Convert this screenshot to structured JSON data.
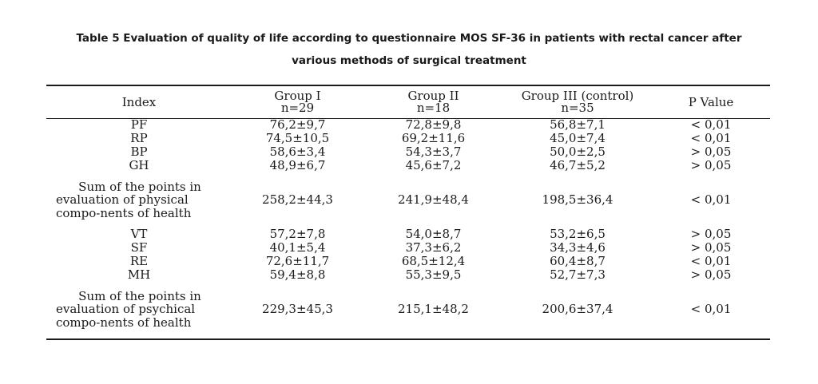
{
  "caption": {
    "line1": "Table 5 Evaluation of quality of life according to questionnaire MOS SF-36 in patients with rectal cancer after",
    "line2": "various methods of surgical treatment"
  },
  "table": {
    "headers": [
      {
        "label": "Index",
        "sub": ""
      },
      {
        "label": "Group I",
        "sub": "n=29"
      },
      {
        "label": "Group II",
        "sub": "n=18"
      },
      {
        "label": "Group III (control)",
        "sub": "n=35"
      },
      {
        "label": "P Value",
        "sub": ""
      }
    ],
    "rows": [
      {
        "index": "PF",
        "g1": "76,2±9,7",
        "g2": "72,8±9,8",
        "g3": "56,8±7,1",
        "p": "< 0,01"
      },
      {
        "index": "RP",
        "g1": "74,5±10,5",
        "g2": "69,2±11,6",
        "g3": "45,0±7,4",
        "p": "< 0,01"
      },
      {
        "index": "BP",
        "g1": "58,6±3,4",
        "g2": "54,3±3,7",
        "g3": "50,0±2,5",
        "p": "> 0,05"
      },
      {
        "index": "GH",
        "g1": "48,9±6,7",
        "g2": "45,6±7,2",
        "g3": "46,7±5,2",
        "p": "> 0,05"
      },
      {
        "index": "Sum of the points in evaluation of physical",
        "index_last": "compo-nents of health",
        "g1": "258,2±44,3",
        "g2": "241,9±48,4",
        "g3": "198,5±36,4",
        "p": "< 0,01"
      },
      {
        "index": "VT",
        "g1": "57,2±7,8",
        "g2": "54,0±8,7",
        "g3": "53,2±6,5",
        "p": "> 0,05"
      },
      {
        "index": "SF",
        "g1": "40,1±5,4",
        "g2": "37,3±6,2",
        "g3": "34,3±4,6",
        "p": "> 0,05"
      },
      {
        "index": "RE",
        "g1": "72,6±11,7",
        "g2": "68,5±12,4",
        "g3": "60,4±8,7",
        "p": "< 0,01"
      },
      {
        "index": "MH",
        "g1": "59,4±8,8",
        "g2": "55,3±9,5",
        "g3": "52,7±7,3",
        "p": "> 0,05"
      },
      {
        "index": "Sum of the points in evaluation of psychical",
        "index_last": "compo-nents of health",
        "g1": "229,3±45,3",
        "g2": "215,1±48,2",
        "g3": "200,6±37,4",
        "p": "< 0,01"
      }
    ]
  }
}
